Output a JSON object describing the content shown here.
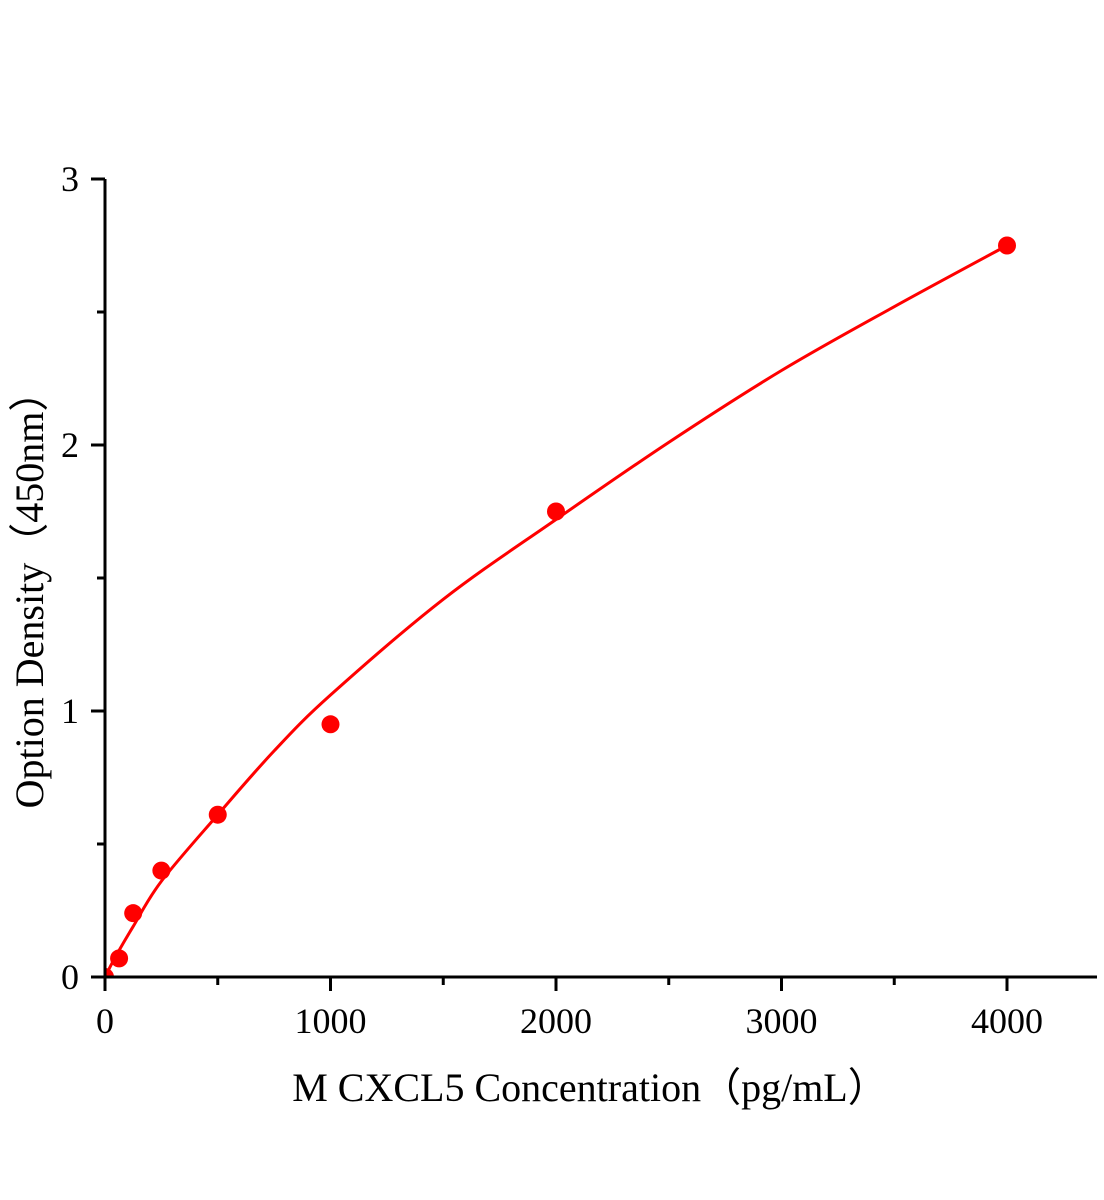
{
  "chart_data": {
    "type": "scatter",
    "title": "",
    "xlabel": "M CXCL5 Concentration（pg/mL）",
    "ylabel": "Option Density（450nm）",
    "xlim": [
      0,
      4400
    ],
    "ylim": [
      0,
      3
    ],
    "x_ticks": [
      0,
      1000,
      2000,
      3000,
      4000
    ],
    "x_tick_labels": [
      "0",
      "1000",
      "2000",
      "3000",
      "4000"
    ],
    "x_minor_ticks": [
      500,
      1500,
      2500,
      3500
    ],
    "y_ticks": [
      0,
      1,
      2,
      3
    ],
    "y_tick_labels": [
      "0",
      "1",
      "2",
      "3"
    ],
    "y_minor_ticks": [
      0.5,
      1.5,
      2.5
    ],
    "grid": false,
    "color": "#ff0000",
    "points": {
      "x": [
        0,
        62.5,
        125,
        250,
        500,
        1000,
        2000,
        4000
      ],
      "y": [
        0.0,
        0.07,
        0.24,
        0.4,
        0.61,
        0.95,
        1.75,
        2.75
      ]
    },
    "fit_curve": {
      "x": [
        0,
        30,
        62.5,
        125,
        250,
        500,
        750,
        1000,
        1500,
        2000,
        2500,
        3000,
        3500,
        4000
      ],
      "y": [
        0,
        0.05,
        0.1,
        0.19,
        0.36,
        0.61,
        0.85,
        1.06,
        1.42,
        1.72,
        2.01,
        2.28,
        2.52,
        2.75
      ]
    }
  }
}
